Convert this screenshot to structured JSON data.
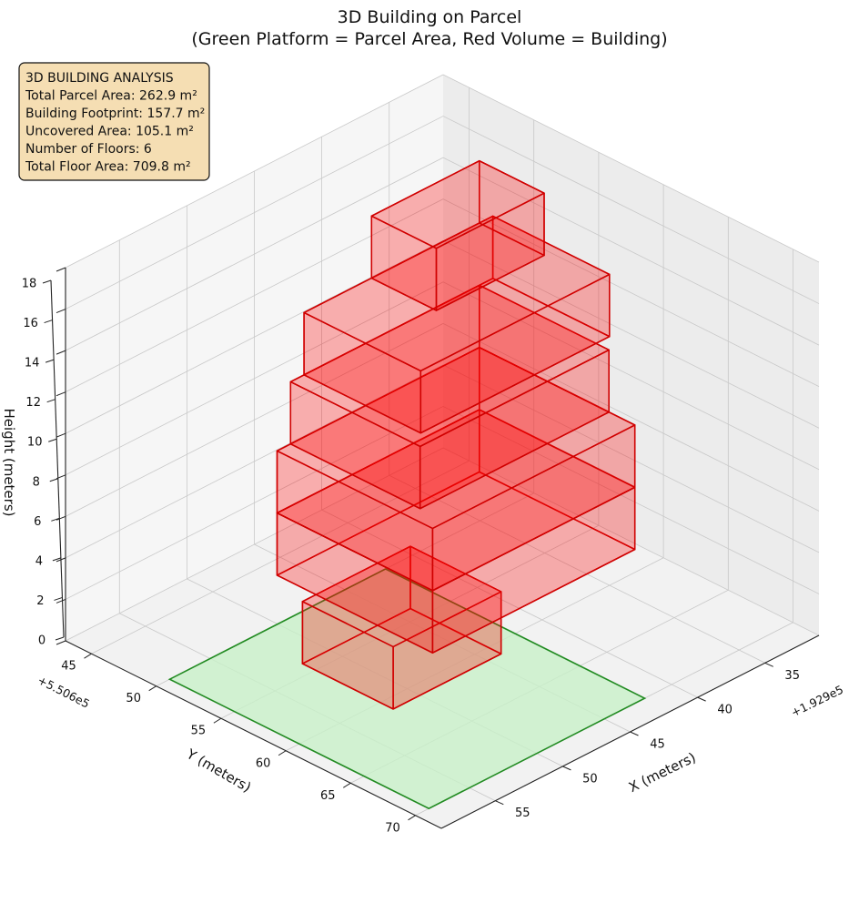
{
  "chart_data": {
    "type": "3d-box",
    "title": "3D Building on Parcel",
    "subtitle": "(Green Platform = Parcel Area, Red Volume = Building)",
    "xlabel": "X (meters)",
    "ylabel": "Y (meters)",
    "zlabel": "Height (meters)",
    "x_offset": "+1.929e5",
    "y_offset": "+5.506e5",
    "x_ticks": [
      35,
      40,
      45,
      50,
      55
    ],
    "y_ticks": [
      45,
      50,
      55,
      60,
      65,
      70
    ],
    "z_ticks": [
      0,
      2,
      4,
      6,
      8,
      10,
      12,
      14,
      16,
      18
    ],
    "xlim": [
      31,
      59
    ],
    "ylim": [
      43,
      72
    ],
    "zlim": [
      0,
      18
    ],
    "grid": true,
    "colors": {
      "parcel_fill": "#c8f0c8",
      "parcel_edge": "#228b22",
      "building_fill": "#ff0000",
      "building_edge": "#d00000",
      "info_box": "#f5deb3"
    },
    "parcel": {
      "x": [
        42,
        58
      ],
      "y": [
        50,
        70
      ],
      "z": 0
    },
    "building_floors": [
      {
        "floor": 1,
        "x": [
          44,
          52
        ],
        "y": [
          54,
          61
        ],
        "z": [
          0,
          3
        ]
      },
      {
        "floor": 2,
        "x": [
          36,
          51
        ],
        "y": [
          51,
          63
        ],
        "z": [
          3,
          6
        ]
      },
      {
        "floor": 3,
        "x": [
          36,
          51
        ],
        "y": [
          51,
          63
        ],
        "z": [
          6,
          9
        ]
      },
      {
        "floor": 4,
        "x": [
          36,
          50
        ],
        "y": [
          51,
          61
        ],
        "z": [
          9,
          12
        ]
      },
      {
        "floor": 5,
        "x": [
          35,
          49
        ],
        "y": [
          51,
          60
        ],
        "z": [
          12,
          15
        ]
      },
      {
        "floor": 6,
        "x": [
          36,
          44
        ],
        "y": [
          51,
          56
        ],
        "z": [
          15,
          18
        ]
      }
    ],
    "annotation": {
      "heading": "3D BUILDING ANALYSIS",
      "lines": [
        "Total Parcel Area: 262.9 m²",
        "Building Footprint: 157.7 m²",
        "Uncovered Area: 105.1 m²",
        "Number of Floors: 6",
        "Total Floor Area: 709.8 m²"
      ],
      "location": "upper-left"
    }
  }
}
